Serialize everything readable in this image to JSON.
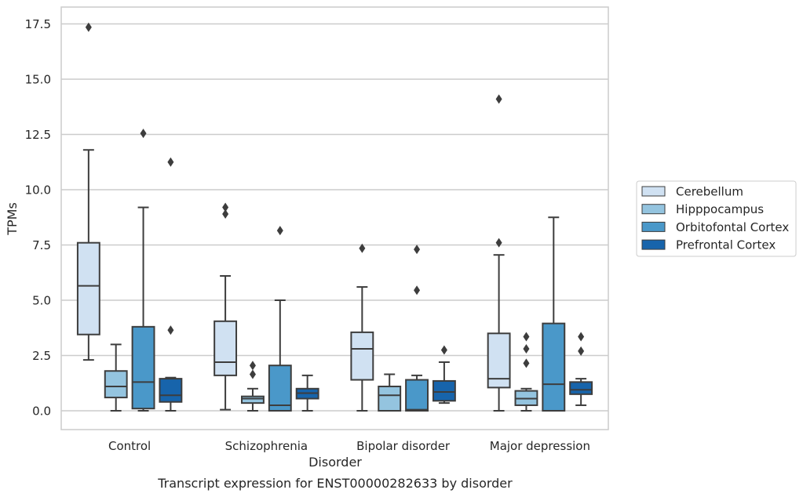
{
  "chart_data": {
    "type": "boxplot",
    "title": "",
    "caption": "Transcript expression for ENST00000282633 by disorder",
    "xlabel": "Disorder",
    "ylabel": "TPMs",
    "ylim": [
      -0.85,
      18.3
    ],
    "yticks": [
      0.0,
      2.5,
      5.0,
      7.5,
      10.0,
      12.5,
      15.0,
      17.5
    ],
    "ytick_labels": [
      "0.0",
      "2.5",
      "5.0",
      "7.5",
      "10.0",
      "12.5",
      "15.0",
      "17.5"
    ],
    "grid": "horizontal",
    "legend_position": "right",
    "categories": [
      "Control",
      "Schizophrenia",
      "Bipolar disorder",
      "Major depression"
    ],
    "series": [
      {
        "name": "Cerebellum",
        "color": "#d0e1f2",
        "boxes": [
          {
            "whisker_low": 2.3,
            "q1": 3.45,
            "median": 5.65,
            "q3": 7.6,
            "whisker_high": 11.8,
            "outliers": [
              17.35
            ]
          },
          {
            "whisker_low": 0.05,
            "q1": 1.6,
            "median": 2.2,
            "q3": 4.05,
            "whisker_high": 6.1,
            "outliers": [
              9.2,
              8.9
            ]
          },
          {
            "whisker_low": 0.0,
            "q1": 1.4,
            "median": 2.8,
            "q3": 3.55,
            "whisker_high": 5.6,
            "outliers": [
              7.35
            ]
          },
          {
            "whisker_low": 0.0,
            "q1": 1.05,
            "median": 1.45,
            "q3": 3.5,
            "whisker_high": 7.05,
            "outliers": [
              7.6,
              14.1
            ]
          }
        ]
      },
      {
        "name": "Hipppocampus",
        "color": "#94c4df",
        "boxes": [
          {
            "whisker_low": 0.0,
            "q1": 0.6,
            "median": 1.1,
            "q3": 1.8,
            "whisker_high": 3.0,
            "outliers": []
          },
          {
            "whisker_low": 0.0,
            "q1": 0.35,
            "median": 0.55,
            "q3": 0.65,
            "whisker_high": 1.0,
            "outliers": [
              1.65,
              2.05
            ]
          },
          {
            "whisker_low": 0.0,
            "q1": 0.0,
            "median": 0.7,
            "q3": 1.1,
            "whisker_high": 1.65,
            "outliers": []
          },
          {
            "whisker_low": 0.0,
            "q1": 0.25,
            "median": 0.55,
            "q3": 0.9,
            "whisker_high": 1.0,
            "outliers": [
              2.15,
              2.8,
              3.35
            ]
          }
        ]
      },
      {
        "name": "Orbitofontal Cortex",
        "color": "#4a98c9",
        "boxes": [
          {
            "whisker_low": 0.0,
            "q1": 0.1,
            "median": 1.3,
            "q3": 3.8,
            "whisker_high": 9.2,
            "outliers": [
              12.55
            ]
          },
          {
            "whisker_low": 0.0,
            "q1": 0.0,
            "median": 0.25,
            "q3": 2.05,
            "whisker_high": 5.0,
            "outliers": [
              8.15
            ]
          },
          {
            "whisker_low": 0.0,
            "q1": 0.0,
            "median": 0.05,
            "q3": 1.4,
            "whisker_high": 1.6,
            "outliers": [
              5.45,
              7.3
            ]
          },
          {
            "whisker_low": 0.0,
            "q1": 0.0,
            "median": 1.2,
            "q3": 3.95,
            "whisker_high": 8.75,
            "outliers": []
          }
        ]
      },
      {
        "name": "Prefrontal Cortex",
        "color": "#1764ab",
        "boxes": [
          {
            "whisker_low": 0.0,
            "q1": 0.4,
            "median": 0.7,
            "q3": 1.45,
            "whisker_high": 1.5,
            "outliers": [
              3.65,
              11.25
            ]
          },
          {
            "whisker_low": 0.0,
            "q1": 0.55,
            "median": 0.8,
            "q3": 1.0,
            "whisker_high": 1.6,
            "outliers": []
          },
          {
            "whisker_low": 0.35,
            "q1": 0.45,
            "median": 0.85,
            "q3": 1.35,
            "whisker_high": 2.2,
            "outliers": [
              2.75
            ]
          },
          {
            "whisker_low": 0.25,
            "q1": 0.75,
            "median": 0.95,
            "q3": 1.3,
            "whisker_high": 1.45,
            "outliers": [
              2.7,
              3.35
            ]
          }
        ]
      }
    ]
  }
}
